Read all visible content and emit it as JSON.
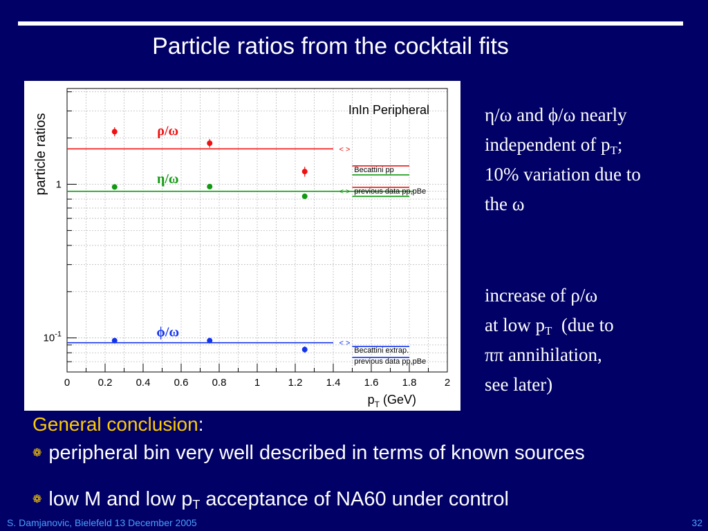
{
  "slide": {
    "title": "Particle ratios from the cocktail fits",
    "footer_left": "S. Damjanovic, Bielefeld 13 December 2005",
    "page_number": "32"
  },
  "side_text_1": {
    "line1": "η/ω and ϕ/ω nearly",
    "line2_main": "independent of p",
    "line2_sub": "T",
    "line2_end": ";",
    "line3": "10% variation due to",
    "line4": "the ω"
  },
  "side_text_2": {
    "line1": "increase of ρ/ω",
    "line2_main": "at low p",
    "line2_sub": "T",
    "line2_end": "  (due to",
    "line3": "ππ annihilation,",
    "line4": "see later)"
  },
  "conclusion": {
    "heading": "General conclusion",
    "colon": ":",
    "bullet1": "peripheral bin very well described in terms of known sources",
    "bullet2_a": "low M and low p",
    "bullet2_sub": "T",
    "bullet2_b": " acceptance of NA60 under control",
    "bullet_icon": "flower-bullet-icon"
  },
  "chart_data": {
    "type": "scatter",
    "title": "InIn Peripheral",
    "ylabel": "particle ratios",
    "xlabel_main": "p",
    "xlabel_sub": "T",
    "xlabel_unit": " (GeV)",
    "x_ticks": [
      "0",
      "0.2",
      "0.4",
      "0.6",
      "0.8",
      "1",
      "1.2",
      "1.4",
      "1.6",
      "1.8",
      "2"
    ],
    "y_ticks": [
      {
        "value": 1,
        "label": "1",
        "sup": ""
      },
      {
        "value": 0.1,
        "label": "10",
        "sup": "-1"
      }
    ],
    "xlim": [
      0,
      2
    ],
    "ylim": [
      0.06,
      4.2
    ],
    "log_y": true,
    "grid": true,
    "series": [
      {
        "name": "ρ/ω",
        "color": "#ee1111",
        "points": [
          {
            "x": 0.25,
            "y": 2.2,
            "err": 0.15
          },
          {
            "x": 0.75,
            "y": 1.85,
            "err": 0.12
          },
          {
            "x": 1.25,
            "y": 1.21,
            "err": 0.09
          }
        ],
        "ref_line": 1.7,
        "ref_marker": "< >"
      },
      {
        "name": "η/ω",
        "color": "#119911",
        "points": [
          {
            "x": 0.25,
            "y": 0.96,
            "err": 0.03
          },
          {
            "x": 0.75,
            "y": 0.965,
            "err": 0.03
          },
          {
            "x": 1.25,
            "y": 0.835,
            "err": 0.03
          }
        ],
        "ref_line": 0.9,
        "ref_marker": "< >"
      },
      {
        "name": "ϕ/ω",
        "color": "#1133ee",
        "points": [
          {
            "x": 0.25,
            "y": 0.096,
            "err": 0.004
          },
          {
            "x": 0.75,
            "y": 0.096,
            "err": 0.004
          },
          {
            "x": 1.25,
            "y": 0.084,
            "err": 0.004
          }
        ],
        "ref_line": 0.093,
        "ref_marker": "< >"
      }
    ],
    "reference_labels": [
      {
        "text": "Becattini pp",
        "y": 1.2,
        "colors": [
          "#ee1111",
          "#119911"
        ]
      },
      {
        "text": "previous data pp,pBe",
        "y": 0.87,
        "colors": [
          "#ee1111",
          "#119911"
        ]
      },
      {
        "text": "Becattini extrap.",
        "y": 0.08,
        "colors": [
          "#1133ee"
        ]
      },
      {
        "text": "previous data pp,pBe",
        "y": 0.068,
        "colors": [
          "#1133ee"
        ]
      }
    ]
  }
}
